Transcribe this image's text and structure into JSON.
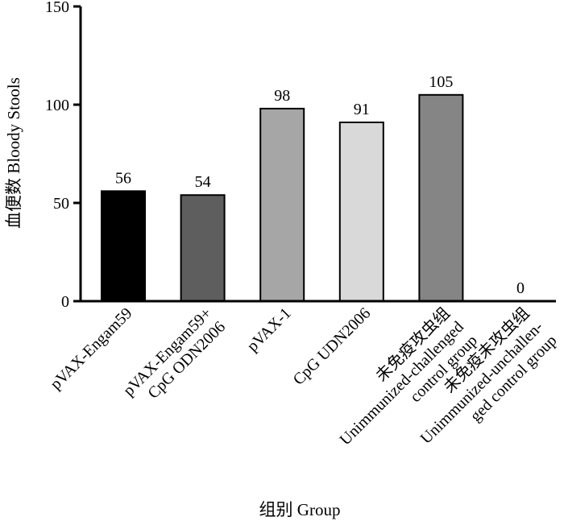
{
  "chart_data": {
    "type": "bar",
    "xlabel": "组别 Group",
    "ylabel": "血便数 Bloody Stools",
    "ylim": [
      0,
      150
    ],
    "yticks": [
      0,
      50,
      100,
      150
    ],
    "grid": false,
    "categories": [
      [
        "pVAX-Engam59"
      ],
      [
        "pVAX-Engam59+",
        "CpG ODN2006"
      ],
      [
        "pVAX-1"
      ],
      [
        "CpG UDN2006"
      ],
      [
        "未免疫攻虫组",
        "Unimmunized-challenged",
        "control group"
      ],
      [
        "未免疫未攻虫组",
        "Unimmunized-unchallen-",
        "ged control group"
      ]
    ],
    "values": [
      56,
      54,
      98,
      91,
      105,
      0
    ],
    "colors": [
      "#000000",
      "#5e5e5e",
      "#a6a6a6",
      "#d9d9d9",
      "#858585",
      "#ffffff"
    ]
  }
}
